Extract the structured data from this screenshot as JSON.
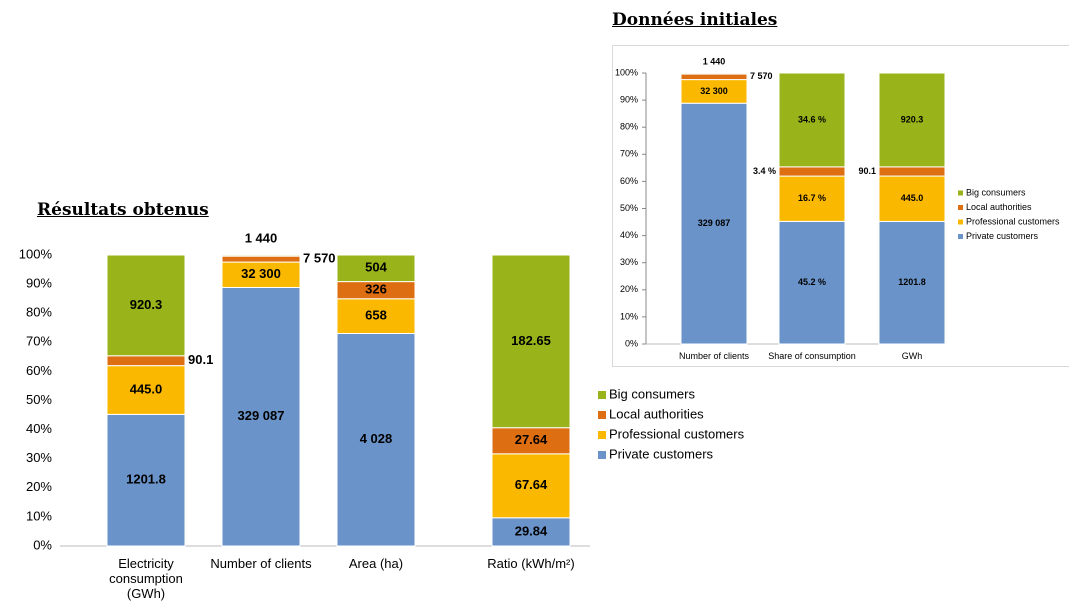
{
  "chart_data": [
    {
      "type": "bar",
      "stacked": "percent",
      "title": "Résultats obtenus",
      "categories": [
        "Electricity consumption (GWh)",
        "Number of clients",
        "Area (ha)",
        "Ratio (kWh/m²)"
      ],
      "series": [
        {
          "name": "Private customers",
          "color": "#6a93c9",
          "values": [
            1201.8,
            329087,
            4028,
            29.84
          ],
          "value_labels": [
            "1201.8",
            "329 087",
            "4 028",
            "29.84"
          ]
        },
        {
          "name": "Professional customers",
          "color": "#fbb800",
          "values": [
            445.0,
            32300,
            658,
            67.64
          ],
          "value_labels": [
            "445.0",
            "32 300",
            "658",
            "67.64"
          ]
        },
        {
          "name": "Local authorities",
          "color": "#dd6f12",
          "values": [
            90.1,
            7570,
            326,
            27.64
          ],
          "value_labels": [
            "90.1",
            "7 570",
            "326",
            "27.64"
          ]
        },
        {
          "name": "Big consumers",
          "color": "#98b41a",
          "values": [
            920.3,
            1440,
            504,
            182.65
          ],
          "value_labels": [
            "920.3",
            "1 440",
            "504",
            "182.65"
          ]
        }
      ],
      "ylim": [
        0,
        100
      ],
      "yticks": [
        {
          "value": 0,
          "label": "0%"
        },
        {
          "value": 10,
          "label": "10%"
        },
        {
          "value": 20,
          "label": "20%"
        },
        {
          "value": 30,
          "label": "30%"
        },
        {
          "value": 40,
          "label": "40%"
        },
        {
          "value": 50,
          "label": "50%"
        },
        {
          "value": 60,
          "label": "60%"
        },
        {
          "value": 70,
          "label": "70%"
        },
        {
          "value": 80,
          "label": "80%"
        },
        {
          "value": 90,
          "label": "90%"
        },
        {
          "value": 100,
          "label": "100%"
        }
      ],
      "grid": false,
      "legend": "bottom-right"
    },
    {
      "type": "bar",
      "stacked": "percent",
      "title": "Données initiales",
      "categories": [
        "Number of clients",
        "Share of consumption",
        "GWh"
      ],
      "series": [
        {
          "name": "Private customers",
          "color": "#6a93c9",
          "values": [
            329087,
            45.2,
            1201.8
          ],
          "value_labels": [
            "329 087",
            "45.2 %",
            "1201.8"
          ]
        },
        {
          "name": "Professional customers",
          "color": "#fbb800",
          "values": [
            32300,
            16.7,
            445.0
          ],
          "value_labels": [
            "32 300",
            "16.7 %",
            "445.0"
          ]
        },
        {
          "name": "Local authorities",
          "color": "#dd6f12",
          "values": [
            7570,
            3.4,
            90.1
          ],
          "value_labels": [
            "7 570",
            "3.4 %",
            "90.1"
          ]
        },
        {
          "name": "Big consumers",
          "color": "#98b41a",
          "values": [
            1440,
            34.6,
            920.3
          ],
          "value_labels": [
            "1 440",
            "34.6 %",
            "920.3"
          ]
        }
      ],
      "ylim": [
        0,
        100
      ],
      "yticks": [
        {
          "value": 0,
          "label": "0%"
        },
        {
          "value": 10,
          "label": "10%"
        },
        {
          "value": 20,
          "label": "20%"
        },
        {
          "value": 30,
          "label": "30%"
        },
        {
          "value": 40,
          "label": "40%"
        },
        {
          "value": 50,
          "label": "50%"
        },
        {
          "value": 60,
          "label": "60%"
        },
        {
          "value": 70,
          "label": "70%"
        },
        {
          "value": 80,
          "label": "80%"
        },
        {
          "value": 90,
          "label": "90%"
        },
        {
          "value": 100,
          "label": "100%"
        }
      ],
      "grid": false,
      "legend": "right"
    }
  ]
}
